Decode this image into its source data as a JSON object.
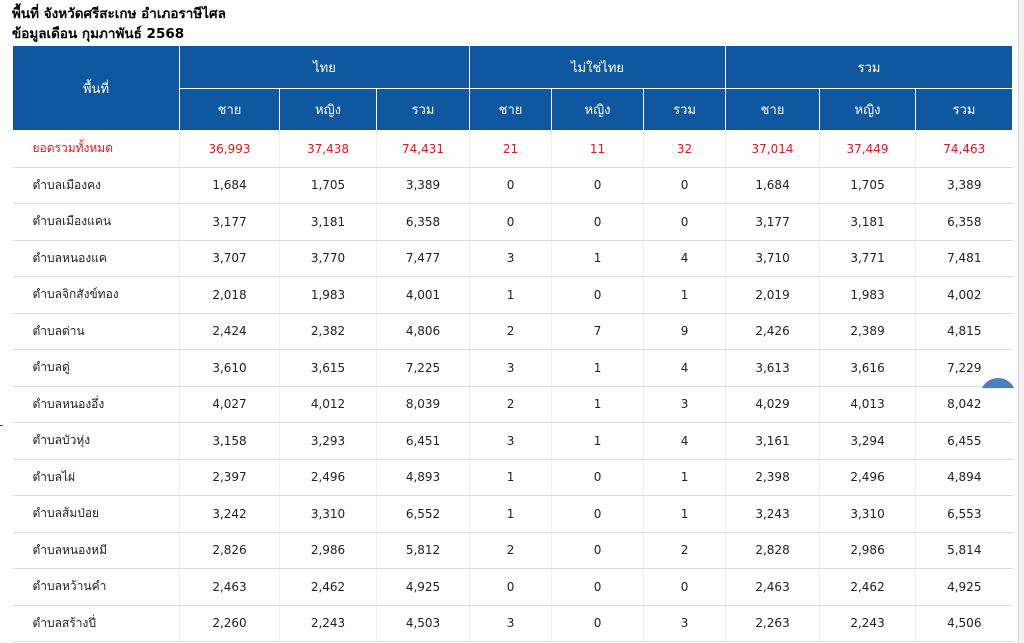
{
  "header": {
    "title": "พื้นที่ จังหวัดศรีสะเกษ อำเภอราษีไศล",
    "subtitle": "ข้อมูลเดือน กุมภาพันธ์ 2568"
  },
  "table": {
    "area_header": "พื้นที่",
    "groups": [
      "ไทย",
      "ไม่ใช่ไทย",
      "รวม"
    ],
    "subheaders": [
      "ชาย",
      "หญิง",
      "รวม",
      "ชาย",
      "หญิง",
      "รวม",
      "ชาย",
      "หญิง",
      "รวม"
    ],
    "rows": [
      {
        "name": "ยอดรวมทั้งหมด",
        "total": true,
        "values": [
          "36,993",
          "37,438",
          "74,431",
          "21",
          "11",
          "32",
          "37,014",
          "37,449",
          "74,463"
        ]
      },
      {
        "name": "ตำบลเมืองคง",
        "values": [
          "1,684",
          "1,705",
          "3,389",
          "0",
          "0",
          "0",
          "1,684",
          "1,705",
          "3,389"
        ]
      },
      {
        "name": "ตำบลเมืองแคน",
        "values": [
          "3,177",
          "3,181",
          "6,358",
          "0",
          "0",
          "0",
          "3,177",
          "3,181",
          "6,358"
        ]
      },
      {
        "name": "ตำบลหนองแค",
        "values": [
          "3,707",
          "3,770",
          "7,477",
          "3",
          "1",
          "4",
          "3,710",
          "3,771",
          "7,481"
        ]
      },
      {
        "name": "ตำบลจิกสังข์ทอง",
        "values": [
          "2,018",
          "1,983",
          "4,001",
          "1",
          "0",
          "1",
          "2,019",
          "1,983",
          "4,002"
        ]
      },
      {
        "name": "ตำบลด่าน",
        "values": [
          "2,424",
          "2,382",
          "4,806",
          "2",
          "7",
          "9",
          "2,426",
          "2,389",
          "4,815"
        ]
      },
      {
        "name": "ตำบลดู่",
        "values": [
          "3,610",
          "3,615",
          "7,225",
          "3",
          "1",
          "4",
          "3,613",
          "3,616",
          "7,229"
        ]
      },
      {
        "name": "ตำบลหนองอึ่ง",
        "values": [
          "4,027",
          "4,012",
          "8,039",
          "2",
          "1",
          "3",
          "4,029",
          "4,013",
          "8,042"
        ]
      },
      {
        "name": "ตำบลบัวหุ่ง",
        "values": [
          "3,158",
          "3,293",
          "6,451",
          "3",
          "1",
          "4",
          "3,161",
          "3,294",
          "6,455"
        ]
      },
      {
        "name": "ตำบลไผ่",
        "values": [
          "2,397",
          "2,496",
          "4,893",
          "1",
          "0",
          "1",
          "2,398",
          "2,496",
          "4,894"
        ]
      },
      {
        "name": "ตำบลส้มป่อย",
        "values": [
          "3,242",
          "3,310",
          "6,552",
          "1",
          "0",
          "1",
          "3,243",
          "3,310",
          "6,553"
        ]
      },
      {
        "name": "ตำบลหนองหมี",
        "values": [
          "2,826",
          "2,986",
          "5,812",
          "2",
          "0",
          "2",
          "2,828",
          "2,986",
          "5,814"
        ]
      },
      {
        "name": "ตำบลหว้านคำ",
        "values": [
          "2,463",
          "2,462",
          "4,925",
          "0",
          "0",
          "0",
          "2,463",
          "2,462",
          "4,925"
        ]
      },
      {
        "name": "ตำบลสร้างปี่",
        "values": [
          "2,260",
          "2,243",
          "4,503",
          "3",
          "0",
          "3",
          "2,263",
          "2,243",
          "4,506"
        ]
      }
    ]
  },
  "colors": {
    "header_bg": "#0f58a0",
    "total_row_text": "#e4151e",
    "scroll_button": "#4b7fc2"
  }
}
